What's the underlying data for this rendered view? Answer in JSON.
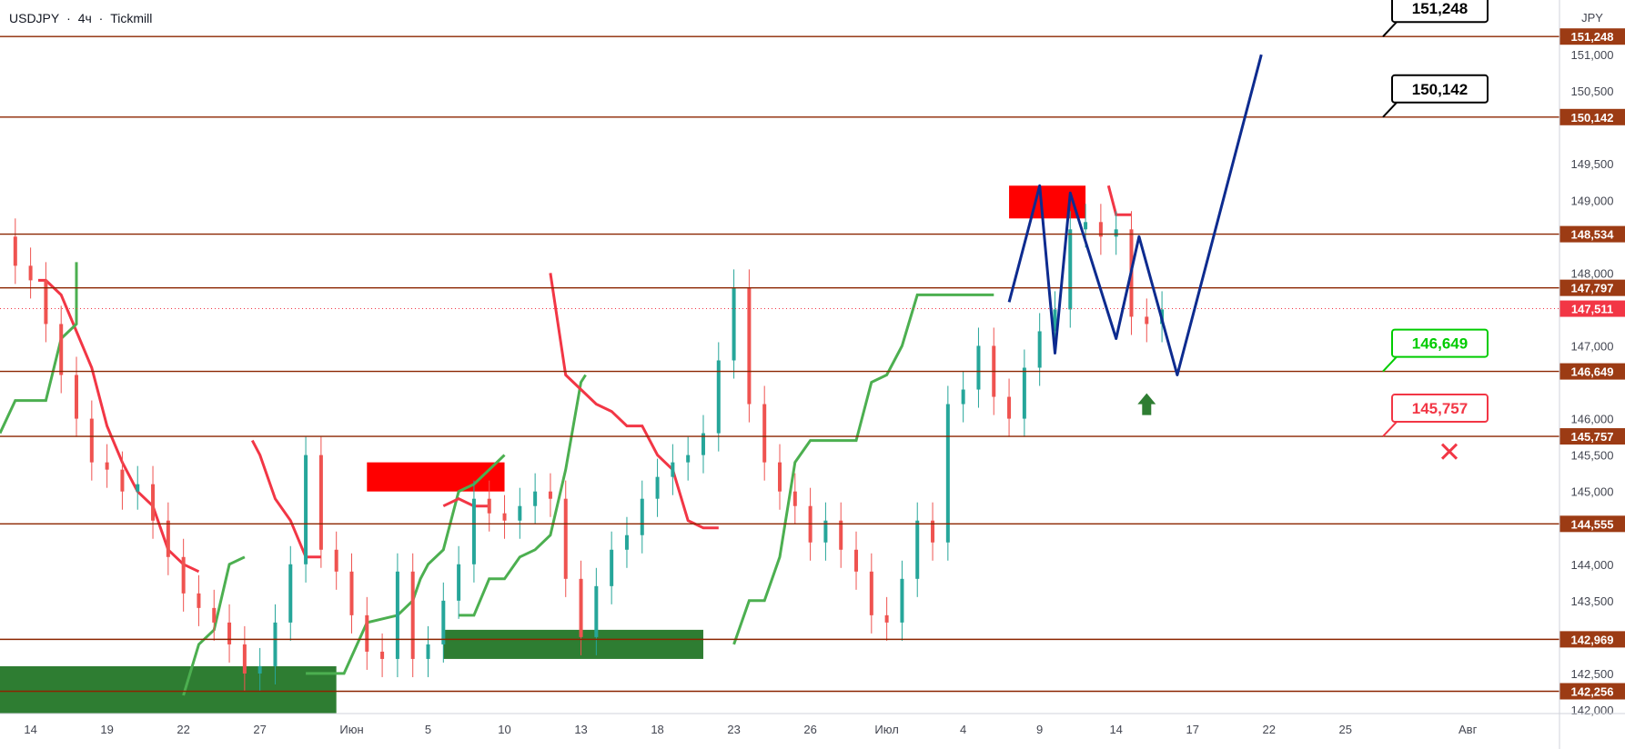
{
  "header": {
    "symbol": "USDJPY",
    "sep": "·",
    "timeframe": "4ч",
    "broker": "Tickmill"
  },
  "colors": {
    "level_line": "#8b2500",
    "level_label_bg": "#9c3b14",
    "up_candle": "#26a69a",
    "down_candle": "#ef5350",
    "support_line": "#4caf50",
    "resist_line": "#f23645",
    "support_fill": "#e6f4e7",
    "resist_fill": "#fde6e6",
    "projection": "#0d2b8f",
    "green_zone": "#2e7d32",
    "red_zone": "#ff0000",
    "current_price": "#f23645",
    "text": "#131722",
    "axis_text": "#434651"
  },
  "chart_data": {
    "type": "candlestick",
    "symbol": "USDJPY",
    "currency": "JPY",
    "ylim": [
      141.95,
      151.75
    ],
    "xlim": [
      0,
      102
    ],
    "y_ticks": [
      "151,000",
      "150,500",
      "149,500",
      "149,000",
      "148,000",
      "147,000",
      "146,000",
      "145,500",
      "145,000",
      "144,000",
      "143,500",
      "142,500",
      "142,000"
    ],
    "y_tick_values": [
      151.0,
      150.5,
      149.5,
      149.0,
      148.0,
      147.0,
      146.0,
      145.5,
      145.0,
      144.0,
      143.5,
      142.5,
      142.0
    ],
    "x_ticks": [
      {
        "label": "14",
        "x": 2
      },
      {
        "label": "19",
        "x": 7
      },
      {
        "label": "22",
        "x": 12
      },
      {
        "label": "27",
        "x": 17
      },
      {
        "label": "Июн",
        "x": 23
      },
      {
        "label": "5",
        "x": 28
      },
      {
        "label": "10",
        "x": 33
      },
      {
        "label": "13",
        "x": 38
      },
      {
        "label": "18",
        "x": 43
      },
      {
        "label": "23",
        "x": 48
      },
      {
        "label": "26",
        "x": 53
      },
      {
        "label": "Июл",
        "x": 58
      },
      {
        "label": "4",
        "x": 63
      },
      {
        "label": "9",
        "x": 68
      },
      {
        "label": "14",
        "x": 73
      },
      {
        "label": "17",
        "x": 78
      },
      {
        "label": "22",
        "x": 83
      },
      {
        "label": "25",
        "x": 88
      },
      {
        "label": "Авг",
        "x": 96
      }
    ],
    "levels": [
      {
        "value": 151.248,
        "label": "151,248"
      },
      {
        "value": 150.142,
        "label": "150,142"
      },
      {
        "value": 148.534,
        "label": "148,534"
      },
      {
        "value": 147.797,
        "label": "147,797"
      },
      {
        "value": 146.649,
        "label": "146,649"
      },
      {
        "value": 145.757,
        "label": "145,757"
      },
      {
        "value": 144.555,
        "label": "144,555"
      },
      {
        "value": 142.969,
        "label": "142,969"
      },
      {
        "value": 142.256,
        "label": "142,256"
      }
    ],
    "current_price": {
      "value": 147.511,
      "label": "147,511"
    },
    "close_path": [
      [
        0,
        148.5
      ],
      [
        1,
        148.1
      ],
      [
        2,
        147.9
      ],
      [
        3,
        147.3
      ],
      [
        4,
        146.6
      ],
      [
        5,
        146.0
      ],
      [
        6,
        145.4
      ],
      [
        7,
        145.3
      ],
      [
        8,
        145.0
      ],
      [
        9,
        145.1
      ],
      [
        10,
        144.6
      ],
      [
        11,
        144.1
      ],
      [
        12,
        143.6
      ],
      [
        13,
        143.4
      ],
      [
        14,
        143.2
      ],
      [
        15,
        142.9
      ],
      [
        16,
        142.5
      ],
      [
        17,
        142.6
      ],
      [
        18,
        143.2
      ],
      [
        19,
        144.0
      ],
      [
        20,
        145.5
      ],
      [
        21,
        144.2
      ],
      [
        22,
        143.9
      ],
      [
        23,
        143.3
      ],
      [
        24,
        142.8
      ],
      [
        25,
        142.7
      ],
      [
        26,
        143.9
      ],
      [
        27,
        142.7
      ],
      [
        28,
        142.9
      ],
      [
        29,
        143.5
      ],
      [
        30,
        144.0
      ],
      [
        31,
        144.9
      ],
      [
        32,
        144.7
      ],
      [
        33,
        144.6
      ],
      [
        34,
        144.8
      ],
      [
        35,
        145.0
      ],
      [
        36,
        144.9
      ],
      [
        37,
        143.8
      ],
      [
        38,
        143.0
      ],
      [
        39,
        143.7
      ],
      [
        40,
        144.2
      ],
      [
        41,
        144.4
      ],
      [
        42,
        144.9
      ],
      [
        43,
        145.2
      ],
      [
        44,
        145.4
      ],
      [
        45,
        145.5
      ],
      [
        46,
        145.8
      ],
      [
        47,
        146.8
      ],
      [
        48,
        147.8
      ],
      [
        49,
        146.2
      ],
      [
        50,
        145.4
      ],
      [
        51,
        145.0
      ],
      [
        52,
        144.8
      ],
      [
        53,
        144.3
      ],
      [
        54,
        144.6
      ],
      [
        55,
        144.2
      ],
      [
        56,
        143.9
      ],
      [
        57,
        143.3
      ],
      [
        58,
        143.2
      ],
      [
        59,
        143.8
      ],
      [
        60,
        144.6
      ],
      [
        61,
        144.3
      ],
      [
        62,
        146.2
      ],
      [
        63,
        146.4
      ],
      [
        64,
        147.0
      ],
      [
        65,
        146.3
      ],
      [
        66,
        146.0
      ],
      [
        67,
        146.7
      ],
      [
        68,
        147.2
      ],
      [
        69,
        147.5
      ],
      [
        70,
        148.6
      ],
      [
        71,
        148.7
      ],
      [
        72,
        148.5
      ],
      [
        73,
        148.6
      ],
      [
        74,
        147.4
      ],
      [
        75,
        147.3
      ],
      [
        76,
        147.5
      ]
    ],
    "projection_path": [
      [
        66,
        147.6
      ],
      [
        68,
        149.2
      ],
      [
        69,
        146.9
      ],
      [
        70,
        149.1
      ],
      [
        73,
        147.1
      ],
      [
        74.5,
        148.5
      ],
      [
        77,
        146.6
      ],
      [
        82.5,
        151.0
      ]
    ],
    "support_line": [
      [
        0,
        145.8
      ],
      [
        1,
        146.25
      ],
      [
        3,
        146.25
      ],
      [
        4,
        147.1
      ],
      [
        5,
        147.3
      ],
      [
        5,
        148.15
      ]
    ],
    "supertrend_green": [
      [
        [
          12,
          142.2
        ],
        [
          13,
          142.9
        ],
        [
          14,
          143.1
        ],
        [
          15,
          144.0
        ],
        [
          16,
          144.1
        ]
      ],
      [
        [
          20,
          142.5
        ],
        [
          22,
          142.5
        ],
        [
          22.5,
          142.5
        ],
        [
          24,
          143.2
        ],
        [
          26,
          143.3
        ],
        [
          27,
          143.5
        ],
        [
          27.5,
          143.8
        ],
        [
          28,
          144.0
        ],
        [
          29,
          144.2
        ],
        [
          30,
          145.0
        ],
        [
          31,
          145.1
        ],
        [
          32,
          145.3
        ],
        [
          33,
          145.5
        ]
      ],
      [
        [
          30,
          143.3
        ],
        [
          31,
          143.3
        ],
        [
          32,
          143.8
        ],
        [
          33,
          143.8
        ],
        [
          34,
          144.1
        ],
        [
          35,
          144.2
        ],
        [
          36,
          144.4
        ],
        [
          37,
          145.3
        ],
        [
          38,
          146.5
        ],
        [
          38.3,
          146.6
        ]
      ],
      [
        [
          48,
          142.9
        ],
        [
          49,
          143.5
        ],
        [
          50,
          143.5
        ],
        [
          51,
          144.1
        ],
        [
          52,
          145.4
        ],
        [
          53,
          145.7
        ],
        [
          54,
          145.7
        ],
        [
          56,
          145.7
        ],
        [
          57,
          146.5
        ],
        [
          58,
          146.6
        ],
        [
          59,
          147.0
        ],
        [
          60,
          147.7
        ],
        [
          61,
          147.7
        ],
        [
          65,
          147.7
        ]
      ]
    ],
    "supertrend_red": [
      [
        [
          2.5,
          147.9
        ],
        [
          3,
          147.9
        ],
        [
          4,
          147.7
        ],
        [
          5,
          147.2
        ],
        [
          6,
          146.7
        ],
        [
          7,
          145.9
        ],
        [
          8,
          145.4
        ],
        [
          9,
          145.0
        ],
        [
          10,
          144.8
        ],
        [
          11,
          144.2
        ],
        [
          12,
          144.0
        ],
        [
          13,
          143.9
        ]
      ],
      [
        [
          16.5,
          145.7
        ],
        [
          17,
          145.5
        ],
        [
          18,
          144.9
        ],
        [
          19,
          144.6
        ],
        [
          20,
          144.1
        ],
        [
          21,
          144.1
        ]
      ],
      [
        [
          29,
          144.8
        ],
        [
          30,
          144.9
        ],
        [
          31,
          144.8
        ],
        [
          32,
          144.8
        ]
      ],
      [
        [
          36,
          148.0
        ],
        [
          37,
          146.6
        ],
        [
          38,
          146.4
        ],
        [
          39,
          146.2
        ],
        [
          40,
          146.1
        ],
        [
          41,
          145.9
        ],
        [
          42,
          145.9
        ],
        [
          43,
          145.5
        ],
        [
          44,
          145.3
        ],
        [
          45,
          144.6
        ],
        [
          46,
          144.5
        ],
        [
          47,
          144.5
        ]
      ],
      [
        [
          72.5,
          149.2
        ],
        [
          73,
          148.8
        ],
        [
          74,
          148.8
        ]
      ]
    ],
    "zones": [
      {
        "color": "green",
        "x0": 0,
        "x1": 22,
        "y0": 141.95,
        "y1": 142.6
      },
      {
        "color": "green",
        "x0": 29,
        "x1": 46,
        "y0": 142.7,
        "y1": 143.1
      },
      {
        "color": "red",
        "x0": 24,
        "x1": 33,
        "y0": 145.0,
        "y1": 145.4
      },
      {
        "color": "red",
        "x0": 66,
        "x1": 71,
        "y0": 148.75,
        "y1": 149.2
      }
    ],
    "callouts": [
      {
        "label": "151,248",
        "value": 151.248,
        "color": "black"
      },
      {
        "label": "150,142",
        "value": 150.142,
        "color": "black"
      },
      {
        "label": "146,649",
        "value": 146.649,
        "color": "green"
      },
      {
        "label": "145,757",
        "value": 145.757,
        "color": "red"
      }
    ]
  }
}
